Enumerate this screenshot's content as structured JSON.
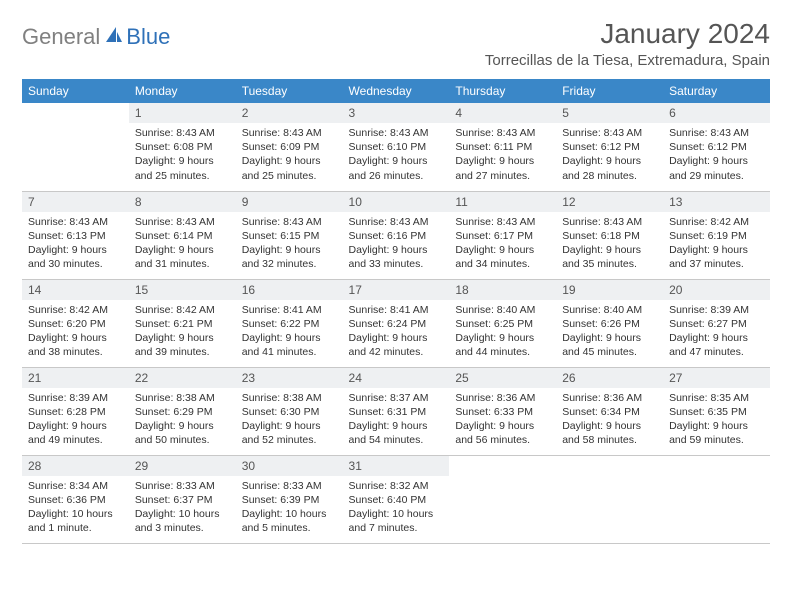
{
  "logo": {
    "gray": "General",
    "blue": "Blue"
  },
  "title": "January 2024",
  "location": "Torrecillas de la Tiesa, Extremadura, Spain",
  "colors": {
    "header_bg": "#3a87c8",
    "daynum_bg": "#eef0f2",
    "text": "#333333",
    "logo_blue": "#2f71b8",
    "logo_gray": "#808080"
  },
  "weekdays": [
    "Sunday",
    "Monday",
    "Tuesday",
    "Wednesday",
    "Thursday",
    "Friday",
    "Saturday"
  ],
  "weeks": [
    [
      {
        "n": "",
        "lines": []
      },
      {
        "n": "1",
        "lines": [
          "Sunrise: 8:43 AM",
          "Sunset: 6:08 PM",
          "Daylight: 9 hours",
          "and 25 minutes."
        ]
      },
      {
        "n": "2",
        "lines": [
          "Sunrise: 8:43 AM",
          "Sunset: 6:09 PM",
          "Daylight: 9 hours",
          "and 25 minutes."
        ]
      },
      {
        "n": "3",
        "lines": [
          "Sunrise: 8:43 AM",
          "Sunset: 6:10 PM",
          "Daylight: 9 hours",
          "and 26 minutes."
        ]
      },
      {
        "n": "4",
        "lines": [
          "Sunrise: 8:43 AM",
          "Sunset: 6:11 PM",
          "Daylight: 9 hours",
          "and 27 minutes."
        ]
      },
      {
        "n": "5",
        "lines": [
          "Sunrise: 8:43 AM",
          "Sunset: 6:12 PM",
          "Daylight: 9 hours",
          "and 28 minutes."
        ]
      },
      {
        "n": "6",
        "lines": [
          "Sunrise: 8:43 AM",
          "Sunset: 6:12 PM",
          "Daylight: 9 hours",
          "and 29 minutes."
        ]
      }
    ],
    [
      {
        "n": "7",
        "lines": [
          "Sunrise: 8:43 AM",
          "Sunset: 6:13 PM",
          "Daylight: 9 hours",
          "and 30 minutes."
        ]
      },
      {
        "n": "8",
        "lines": [
          "Sunrise: 8:43 AM",
          "Sunset: 6:14 PM",
          "Daylight: 9 hours",
          "and 31 minutes."
        ]
      },
      {
        "n": "9",
        "lines": [
          "Sunrise: 8:43 AM",
          "Sunset: 6:15 PM",
          "Daylight: 9 hours",
          "and 32 minutes."
        ]
      },
      {
        "n": "10",
        "lines": [
          "Sunrise: 8:43 AM",
          "Sunset: 6:16 PM",
          "Daylight: 9 hours",
          "and 33 minutes."
        ]
      },
      {
        "n": "11",
        "lines": [
          "Sunrise: 8:43 AM",
          "Sunset: 6:17 PM",
          "Daylight: 9 hours",
          "and 34 minutes."
        ]
      },
      {
        "n": "12",
        "lines": [
          "Sunrise: 8:43 AM",
          "Sunset: 6:18 PM",
          "Daylight: 9 hours",
          "and 35 minutes."
        ]
      },
      {
        "n": "13",
        "lines": [
          "Sunrise: 8:42 AM",
          "Sunset: 6:19 PM",
          "Daylight: 9 hours",
          "and 37 minutes."
        ]
      }
    ],
    [
      {
        "n": "14",
        "lines": [
          "Sunrise: 8:42 AM",
          "Sunset: 6:20 PM",
          "Daylight: 9 hours",
          "and 38 minutes."
        ]
      },
      {
        "n": "15",
        "lines": [
          "Sunrise: 8:42 AM",
          "Sunset: 6:21 PM",
          "Daylight: 9 hours",
          "and 39 minutes."
        ]
      },
      {
        "n": "16",
        "lines": [
          "Sunrise: 8:41 AM",
          "Sunset: 6:22 PM",
          "Daylight: 9 hours",
          "and 41 minutes."
        ]
      },
      {
        "n": "17",
        "lines": [
          "Sunrise: 8:41 AM",
          "Sunset: 6:24 PM",
          "Daylight: 9 hours",
          "and 42 minutes."
        ]
      },
      {
        "n": "18",
        "lines": [
          "Sunrise: 8:40 AM",
          "Sunset: 6:25 PM",
          "Daylight: 9 hours",
          "and 44 minutes."
        ]
      },
      {
        "n": "19",
        "lines": [
          "Sunrise: 8:40 AM",
          "Sunset: 6:26 PM",
          "Daylight: 9 hours",
          "and 45 minutes."
        ]
      },
      {
        "n": "20",
        "lines": [
          "Sunrise: 8:39 AM",
          "Sunset: 6:27 PM",
          "Daylight: 9 hours",
          "and 47 minutes."
        ]
      }
    ],
    [
      {
        "n": "21",
        "lines": [
          "Sunrise: 8:39 AM",
          "Sunset: 6:28 PM",
          "Daylight: 9 hours",
          "and 49 minutes."
        ]
      },
      {
        "n": "22",
        "lines": [
          "Sunrise: 8:38 AM",
          "Sunset: 6:29 PM",
          "Daylight: 9 hours",
          "and 50 minutes."
        ]
      },
      {
        "n": "23",
        "lines": [
          "Sunrise: 8:38 AM",
          "Sunset: 6:30 PM",
          "Daylight: 9 hours",
          "and 52 minutes."
        ]
      },
      {
        "n": "24",
        "lines": [
          "Sunrise: 8:37 AM",
          "Sunset: 6:31 PM",
          "Daylight: 9 hours",
          "and 54 minutes."
        ]
      },
      {
        "n": "25",
        "lines": [
          "Sunrise: 8:36 AM",
          "Sunset: 6:33 PM",
          "Daylight: 9 hours",
          "and 56 minutes."
        ]
      },
      {
        "n": "26",
        "lines": [
          "Sunrise: 8:36 AM",
          "Sunset: 6:34 PM",
          "Daylight: 9 hours",
          "and 58 minutes."
        ]
      },
      {
        "n": "27",
        "lines": [
          "Sunrise: 8:35 AM",
          "Sunset: 6:35 PM",
          "Daylight: 9 hours",
          "and 59 minutes."
        ]
      }
    ],
    [
      {
        "n": "28",
        "lines": [
          "Sunrise: 8:34 AM",
          "Sunset: 6:36 PM",
          "Daylight: 10 hours",
          "and 1 minute."
        ]
      },
      {
        "n": "29",
        "lines": [
          "Sunrise: 8:33 AM",
          "Sunset: 6:37 PM",
          "Daylight: 10 hours",
          "and 3 minutes."
        ]
      },
      {
        "n": "30",
        "lines": [
          "Sunrise: 8:33 AM",
          "Sunset: 6:39 PM",
          "Daylight: 10 hours",
          "and 5 minutes."
        ]
      },
      {
        "n": "31",
        "lines": [
          "Sunrise: 8:32 AM",
          "Sunset: 6:40 PM",
          "Daylight: 10 hours",
          "and 7 minutes."
        ]
      },
      {
        "n": "",
        "lines": []
      },
      {
        "n": "",
        "lines": []
      },
      {
        "n": "",
        "lines": []
      }
    ]
  ]
}
